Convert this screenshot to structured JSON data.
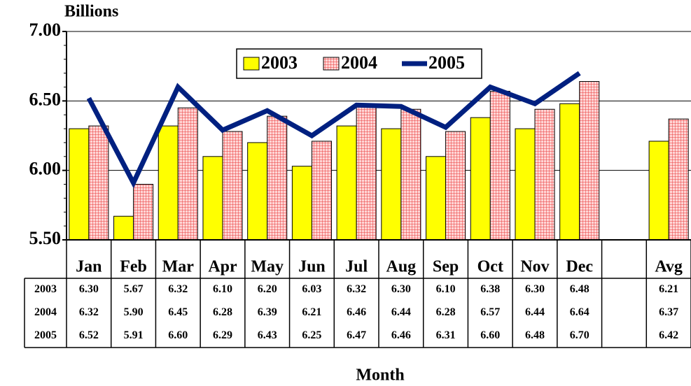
{
  "chart_data": {
    "type": "bar_line",
    "y_label": "Billions",
    "x_label": "Month",
    "categories": [
      "Jan",
      "Feb",
      "Mar",
      "Apr",
      "May",
      "Jun",
      "Jul",
      "Aug",
      "Sep",
      "Oct",
      "Nov",
      "Dec",
      null,
      "Avg"
    ],
    "series": [
      {
        "name": "2003",
        "type": "bar",
        "color": "#ffff00",
        "values": [
          6.3,
          5.67,
          6.32,
          6.1,
          6.2,
          6.03,
          6.32,
          6.3,
          6.1,
          6.38,
          6.3,
          6.48,
          null,
          6.21
        ],
        "value_labels": [
          "6.30",
          "5.67",
          "6.32",
          "6.10",
          "6.20",
          "6.03",
          "6.32",
          "6.30",
          "6.10",
          "6.38",
          "6.30",
          "6.48",
          null,
          "6.21"
        ]
      },
      {
        "name": "2004",
        "type": "bar",
        "color": "#ff9999",
        "values": [
          6.32,
          5.9,
          6.45,
          6.28,
          6.39,
          6.21,
          6.46,
          6.44,
          6.28,
          6.57,
          6.44,
          6.64,
          null,
          6.37
        ],
        "value_labels": [
          "6.32",
          "5.90",
          "6.45",
          "6.28",
          "6.39",
          "6.21",
          "6.46",
          "6.44",
          "6.28",
          "6.57",
          "6.44",
          "6.64",
          null,
          "6.37"
        ]
      },
      {
        "name": "2005",
        "type": "line",
        "color": "#002080",
        "values": [
          6.52,
          5.91,
          6.6,
          6.29,
          6.43,
          6.25,
          6.47,
          6.46,
          6.31,
          6.6,
          6.48,
          6.7,
          null,
          6.42
        ],
        "value_labels": [
          "6.52",
          "5.91",
          "6.60",
          "6.29",
          "6.43",
          "6.25",
          "6.47",
          "6.46",
          "6.31",
          "6.60",
          "6.48",
          "6.70",
          null,
          "6.42"
        ]
      }
    ],
    "ylim": [
      5.5,
      7.0
    ],
    "yticks": [
      {
        "value": 5.5,
        "label": "5.50"
      },
      {
        "value": 6.0,
        "label": "6.00"
      },
      {
        "value": 6.5,
        "label": "6.50"
      },
      {
        "value": 7.0,
        "label": "7.00"
      }
    ],
    "grid": true,
    "legend": "top"
  }
}
